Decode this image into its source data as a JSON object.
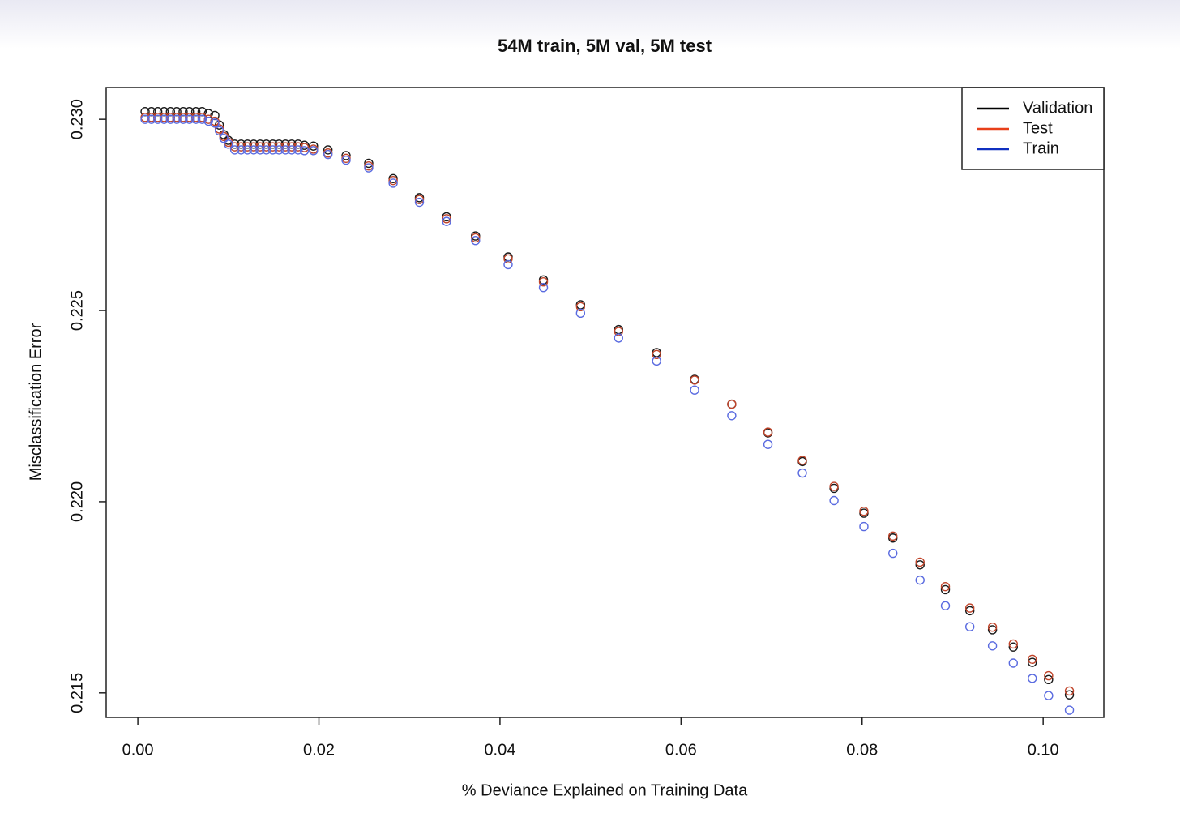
{
  "chart_data": {
    "type": "scatter",
    "title": "54M train, 5M val, 5M test",
    "x_label": "% Deviance Explained on Training Data",
    "y_label": "Misclassification Error",
    "x": [
      0.0008,
      0.0015,
      0.0022,
      0.0029,
      0.0036,
      0.0043,
      0.005,
      0.0057,
      0.0064,
      0.0071,
      0.0078,
      0.0085,
      0.009,
      0.0095,
      0.01,
      0.0107,
      0.0114,
      0.0121,
      0.0128,
      0.0135,
      0.0142,
      0.0149,
      0.0156,
      0.0163,
      0.017,
      0.0177,
      0.0184,
      0.0194,
      0.021,
      0.023,
      0.0255,
      0.0282,
      0.0311,
      0.0341,
      0.0373,
      0.0409,
      0.0448,
      0.0489,
      0.0531,
      0.0573,
      0.0615,
      0.0656,
      0.0696,
      0.0734,
      0.0769,
      0.0802,
      0.0834,
      0.0864,
      0.0892,
      0.0919,
      0.0944,
      0.0967,
      0.0988,
      0.1006,
      0.1029
    ],
    "series": [
      {
        "name": "Validation",
        "color": "#1a1a1a",
        "legend_color": "#000000",
        "values": [
          0.2302,
          0.2302,
          0.2302,
          0.2302,
          0.2302,
          0.2302,
          0.2302,
          0.2302,
          0.2302,
          0.2302,
          0.23015,
          0.2301,
          0.22985,
          0.2296,
          0.22945,
          0.22935,
          0.22935,
          0.22935,
          0.22935,
          0.22935,
          0.22935,
          0.22935,
          0.22935,
          0.22935,
          0.22935,
          0.22935,
          0.22932,
          0.2293,
          0.2292,
          0.22905,
          0.22885,
          0.22845,
          0.22795,
          0.22745,
          0.22695,
          0.2264,
          0.2258,
          0.22515,
          0.2245,
          0.2239,
          0.2232,
          0.22255,
          0.2218,
          0.22105,
          0.22035,
          0.2197,
          0.21905,
          0.21835,
          0.2177,
          0.21715,
          0.21665,
          0.2162,
          0.2158,
          0.21535,
          0.21495
        ]
      },
      {
        "name": "Test",
        "color": "#c0442a",
        "legend_color": "#e8401a",
        "values": [
          0.23005,
          0.23005,
          0.23005,
          0.23005,
          0.23005,
          0.23005,
          0.23005,
          0.23005,
          0.23005,
          0.23005,
          0.23,
          0.22995,
          0.22975,
          0.22955,
          0.2294,
          0.22928,
          0.22928,
          0.22928,
          0.22928,
          0.22928,
          0.22928,
          0.22928,
          0.22928,
          0.22928,
          0.22928,
          0.22928,
          0.22926,
          0.22922,
          0.22912,
          0.22898,
          0.22878,
          0.2284,
          0.2279,
          0.2274,
          0.2269,
          0.22635,
          0.22575,
          0.2251,
          0.22445,
          0.22385,
          0.22318,
          0.22255,
          0.22182,
          0.22108,
          0.2204,
          0.21975,
          0.2191,
          0.21842,
          0.21778,
          0.21722,
          0.21672,
          0.21628,
          0.21588,
          0.21545,
          0.21505
        ]
      },
      {
        "name": "Train",
        "color": "#5a6be0",
        "legend_color": "#1030c0",
        "values": [
          0.23,
          0.23,
          0.23,
          0.23,
          0.23,
          0.23,
          0.23,
          0.23,
          0.23,
          0.23,
          0.22995,
          0.2299,
          0.2297,
          0.2295,
          0.22935,
          0.2292,
          0.2292,
          0.2292,
          0.2292,
          0.2292,
          0.2292,
          0.2292,
          0.2292,
          0.2292,
          0.2292,
          0.2292,
          0.22918,
          0.22918,
          0.22908,
          0.22893,
          0.22873,
          0.22833,
          0.22783,
          0.22733,
          0.22683,
          0.2262,
          0.2256,
          0.22493,
          0.22428,
          0.22368,
          0.22292,
          0.22225,
          0.2215,
          0.22075,
          0.22003,
          0.21935,
          0.21865,
          0.21795,
          0.21728,
          0.21673,
          0.21623,
          0.21578,
          0.21538,
          0.21493,
          0.21455
        ]
      }
    ],
    "xlim": [
      -0.0035,
      0.1067
    ],
    "ylim": [
      0.21436,
      0.23083
    ],
    "xticks": [
      {
        "value": 0,
        "label": "0.00"
      },
      {
        "value": 0.02,
        "label": "0.02"
      },
      {
        "value": 0.04,
        "label": "0.04"
      },
      {
        "value": 0.06,
        "label": "0.06"
      },
      {
        "value": 0.08,
        "label": "0.08"
      },
      {
        "value": 0.1,
        "label": "0.10"
      }
    ],
    "yticks": [
      0.215,
      {
        "value": 0.22,
        "label": "0.220"
      },
      0.225,
      {
        "value": 0.23,
        "label": "0.230"
      }
    ],
    "legend": "topright"
  }
}
